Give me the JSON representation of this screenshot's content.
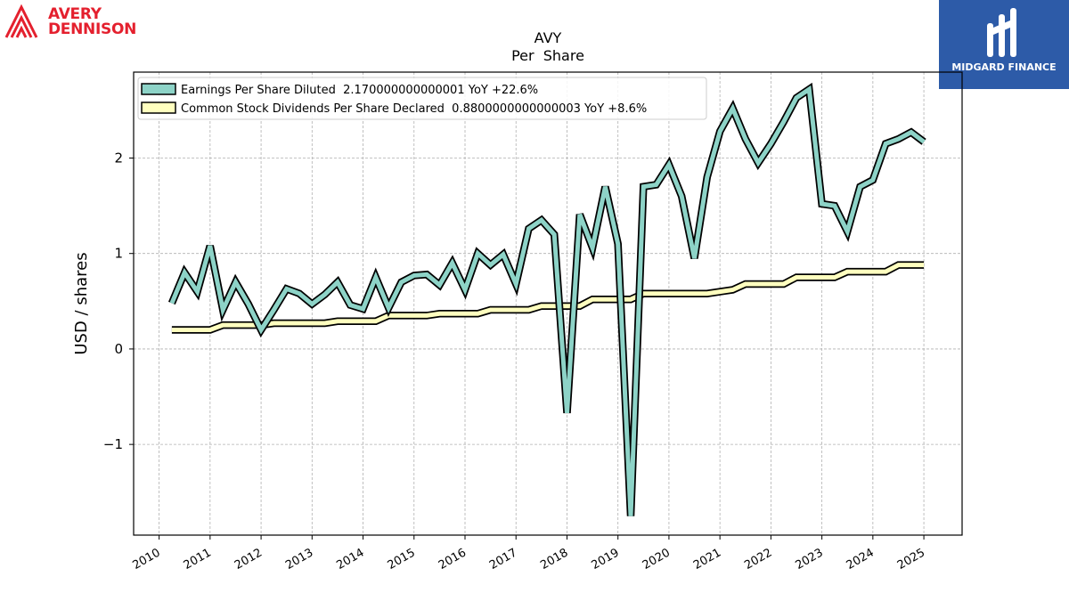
{
  "brand": {
    "company_line1": "AVERY",
    "company_line2": "DENNISON",
    "publisher": "MIDGARD FINANCE"
  },
  "colors": {
    "eps": "#8dd3c7",
    "dividends": "#ffffbf",
    "outline": "#000000",
    "grid": "#b0b0b0"
  },
  "chart_data": {
    "type": "line",
    "title": "AVY",
    "subtitle": "Per  Share",
    "xlabel": "",
    "ylabel": "USD / shares",
    "xlim": [
      2009.5,
      2025.75
    ],
    "ylim": [
      -1.95,
      2.9
    ],
    "x_ticks": [
      2010,
      2011,
      2012,
      2013,
      2014,
      2015,
      2016,
      2017,
      2018,
      2019,
      2020,
      2021,
      2022,
      2023,
      2024,
      2025
    ],
    "x_tick_labels": [
      "2010",
      "2011",
      "2012",
      "2013",
      "2014",
      "2015",
      "2016",
      "2017",
      "2018",
      "2019",
      "2020",
      "2021",
      "2022",
      "2023",
      "2024",
      "2025"
    ],
    "y_ticks": [
      -1,
      0,
      1,
      2
    ],
    "y_tick_labels": [
      "−1",
      "0",
      "1",
      "2"
    ],
    "grid": true,
    "legend_position": "top-left",
    "series": [
      {
        "name": "Earnings Per Share Diluted  2.170000000000001 YoY +22.6%",
        "color": "#8dd3c7",
        "x": [
          2010.25,
          2010.5,
          2010.75,
          2011.0,
          2011.25,
          2011.5,
          2011.75,
          2012.0,
          2012.25,
          2012.5,
          2012.75,
          2013.0,
          2013.25,
          2013.5,
          2013.75,
          2014.0,
          2014.25,
          2014.5,
          2014.75,
          2015.0,
          2015.25,
          2015.5,
          2015.75,
          2016.0,
          2016.25,
          2016.5,
          2016.75,
          2017.0,
          2017.25,
          2017.5,
          2017.75,
          2018.0,
          2018.25,
          2018.5,
          2018.75,
          2019.0,
          2019.25,
          2019.5,
          2019.75,
          2020.0,
          2020.25,
          2020.5,
          2020.75,
          2021.0,
          2021.25,
          2021.5,
          2021.75,
          2022.0,
          2022.25,
          2022.5,
          2022.75,
          2023.0,
          2023.25,
          2023.5,
          2023.75,
          2024.0,
          2024.25,
          2024.5,
          2024.75,
          2025.0
        ],
        "y": [
          0.48,
          0.8,
          0.6,
          1.08,
          0.41,
          0.7,
          0.47,
          0.2,
          0.41,
          0.63,
          0.58,
          0.47,
          0.57,
          0.7,
          0.46,
          0.42,
          0.75,
          0.43,
          0.7,
          0.77,
          0.78,
          0.67,
          0.9,
          0.62,
          1.0,
          0.88,
          0.99,
          0.68,
          1.26,
          1.35,
          1.2,
          -0.67,
          1.41,
          1.06,
          1.7,
          1.1,
          -1.75,
          1.7,
          1.72,
          1.93,
          1.6,
          0.95,
          1.8,
          2.28,
          2.52,
          2.2,
          1.95,
          2.15,
          2.38,
          2.63,
          2.72,
          1.52,
          1.5,
          1.23,
          1.7,
          1.77,
          2.15,
          2.2,
          2.27,
          2.17
        ]
      },
      {
        "name": "Common Stock Dividends Per Share Declared  0.8800000000000003 YoY +8.6%",
        "color": "#ffffbf",
        "x": [
          2010.25,
          2010.5,
          2010.75,
          2011.0,
          2011.25,
          2011.5,
          2011.75,
          2012.0,
          2012.25,
          2012.5,
          2012.75,
          2013.0,
          2013.25,
          2013.5,
          2013.75,
          2014.0,
          2014.25,
          2014.5,
          2014.75,
          2015.0,
          2015.25,
          2015.5,
          2015.75,
          2016.0,
          2016.25,
          2016.5,
          2016.75,
          2017.0,
          2017.25,
          2017.5,
          2017.75,
          2018.0,
          2018.25,
          2018.5,
          2018.75,
          2019.0,
          2019.25,
          2019.5,
          2019.75,
          2020.0,
          2020.25,
          2020.5,
          2020.75,
          2021.0,
          2021.25,
          2021.5,
          2021.75,
          2022.0,
          2022.25,
          2022.5,
          2022.75,
          2023.0,
          2023.25,
          2023.5,
          2023.75,
          2024.0,
          2024.25,
          2024.5,
          2024.75,
          2025.0
        ],
        "y": [
          0.2,
          0.2,
          0.2,
          0.2,
          0.25,
          0.25,
          0.25,
          0.25,
          0.27,
          0.27,
          0.27,
          0.27,
          0.27,
          0.29,
          0.29,
          0.29,
          0.29,
          0.35,
          0.35,
          0.35,
          0.35,
          0.37,
          0.37,
          0.37,
          0.37,
          0.41,
          0.41,
          0.41,
          0.41,
          0.45,
          0.45,
          0.45,
          0.45,
          0.52,
          0.52,
          0.52,
          0.52,
          0.58,
          0.58,
          0.58,
          0.58,
          0.58,
          0.58,
          0.6,
          0.62,
          0.68,
          0.68,
          0.68,
          0.68,
          0.75,
          0.75,
          0.75,
          0.75,
          0.81,
          0.81,
          0.81,
          0.81,
          0.88,
          0.88,
          0.88
        ]
      }
    ]
  }
}
